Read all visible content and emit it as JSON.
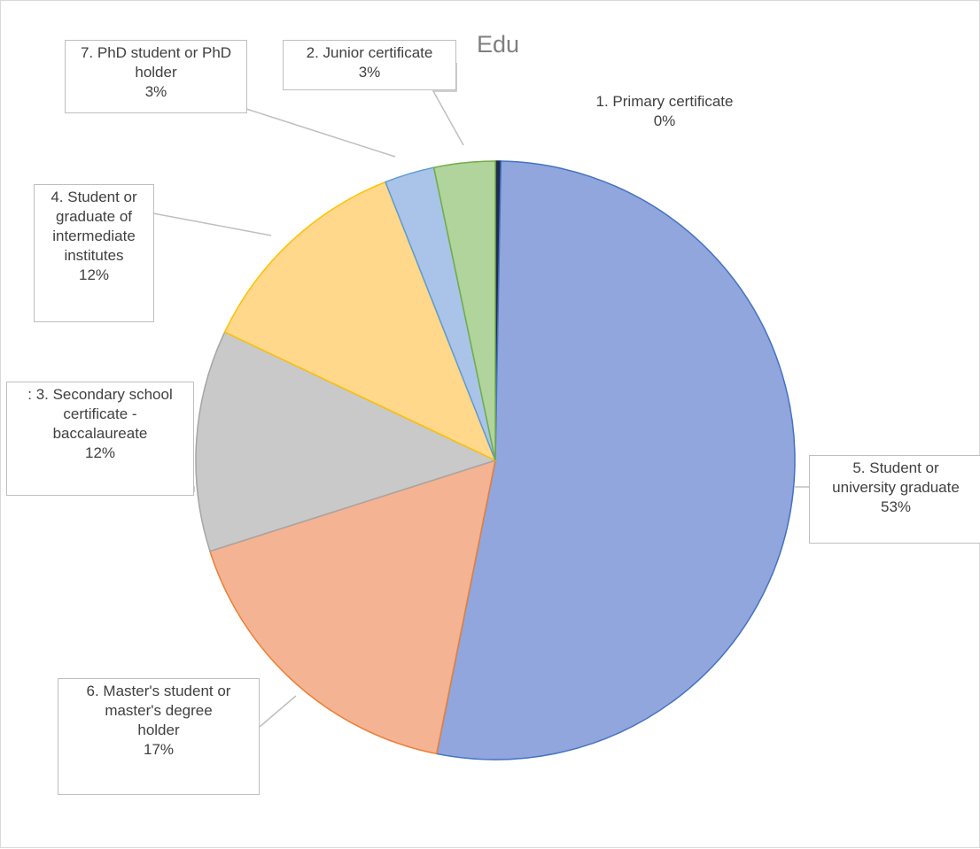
{
  "chart_data": {
    "type": "pie",
    "title": "Edu",
    "slices": [
      {
        "label": "1. Primary certificate",
        "value": 0.3,
        "pct_label": "0%",
        "color": "#1f2d4d",
        "edge": "#1f2d4d"
      },
      {
        "label": "5. Student or university graduate",
        "value": 53,
        "pct_label": "53%",
        "color": "#90a6dc",
        "edge": "#4472c4"
      },
      {
        "label": "6. Master's student or master's degree holder",
        "value": 17,
        "pct_label": "17%",
        "color": "#f4b393",
        "edge": "#ed7d31"
      },
      {
        "label": ": 3. Secondary school certificate - baccalaureate",
        "value": 12,
        "pct_label": "12%",
        "color": "#c9c9c9",
        "edge": "#a5a5a5"
      },
      {
        "label": "4. Student or graduate of intermediate institutes",
        "value": 12,
        "pct_label": "12%",
        "color": "#ffd88b",
        "edge": "#ffc000"
      },
      {
        "label": "7. PhD student or PhD holder",
        "value": 2.7,
        "pct_label": "3%",
        "color": "#a9c4e8",
        "edge": "#5b9bd5"
      },
      {
        "label": "2. Junior certificate",
        "value": 3.3,
        "pct_label": "3%",
        "color": "#b1d39c",
        "edge": "#70ad47"
      }
    ],
    "data_label_lines": {
      "primary": [
        "1. Primary certificate",
        "0%"
      ],
      "university": [
        "5. Student or",
        "university graduate",
        "53%"
      ],
      "master": [
        "6. Master's student or",
        "master's degree",
        "holder",
        "17%"
      ],
      "secondary": [
        ": 3. Secondary school",
        "certificate -",
        "baccalaureate",
        "12%"
      ],
      "intermediate": [
        "4. Student or",
        "graduate of",
        "intermediate",
        "institutes",
        "12%"
      ],
      "phd": [
        "7. PhD student or PhD",
        "holder",
        "3%"
      ],
      "junior": [
        "2. Junior certificate",
        "3%"
      ]
    }
  }
}
